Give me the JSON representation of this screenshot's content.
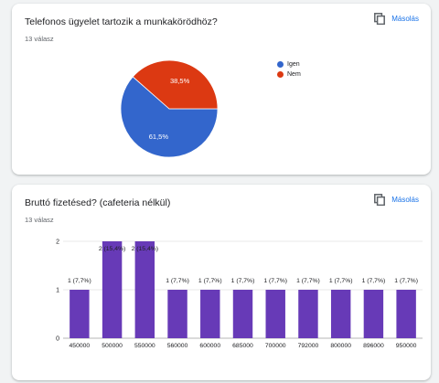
{
  "colors": {
    "accent": "#1a73e8",
    "pie_blue": "#3366cc",
    "pie_red": "#dc3912",
    "bar": "#673ab7"
  },
  "questions": [
    {
      "title": "Telefonos ügyelet tartozik a munkakörödhöz?",
      "responses": "13 válasz",
      "copy_label": "Másolás",
      "copy_icon": "copy-icon"
    },
    {
      "title": "Bruttó fizetésed? (cafeteria nélkül)",
      "responses": "13 válasz",
      "copy_label": "Másolás",
      "copy_icon": "copy-icon"
    }
  ],
  "chart_data": [
    {
      "type": "pie",
      "labels": [
        "Igen",
        "Nem"
      ],
      "values": [
        61.5,
        38.5
      ],
      "slice_labels": [
        "61,5%",
        "38,5%"
      ],
      "colors": [
        "#3366cc",
        "#dc3912"
      ],
      "legend_position": "right"
    },
    {
      "type": "bar",
      "categories": [
        "450000",
        "500000",
        "550000",
        "560000",
        "600000",
        "685000",
        "700000",
        "792000",
        "800000",
        "896000",
        "950000"
      ],
      "values": [
        1,
        2,
        2,
        1,
        1,
        1,
        1,
        1,
        1,
        1,
        1
      ],
      "data_labels": [
        "1 (7,7%)",
        "2 (15,4%)",
        "2 (15,4%)",
        "1 (7,7%)",
        "1 (7,7%)",
        "1 (7,7%)",
        "1 (7,7%)",
        "1 (7,7%)",
        "1 (7,7%)",
        "1 (7,7%)",
        "1 (7,7%)"
      ],
      "yticks": [
        "0",
        "1",
        "2"
      ],
      "ylim": [
        0,
        2
      ],
      "grid": true,
      "color": "#673ab7"
    }
  ]
}
